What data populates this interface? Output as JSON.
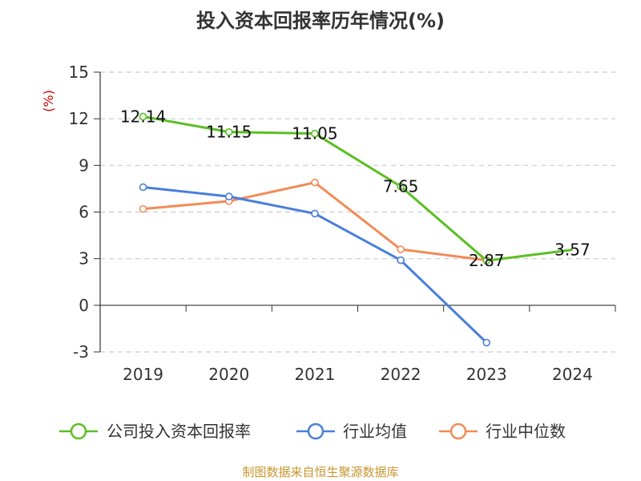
{
  "chart_data": {
    "type": "line",
    "title": "投入资本回报率历年情况(%)",
    "ylabel": "(%)",
    "categories": [
      "2019",
      "2020",
      "2021",
      "2022",
      "2023",
      "2024"
    ],
    "y_ticks": [
      "15",
      "12",
      "9",
      "6",
      "3",
      "0",
      "-3"
    ],
    "ylim": [
      -3,
      15
    ],
    "grid": true,
    "legend_position": "bottom",
    "series": [
      {
        "name": "公司投入资本回报率",
        "color": "#5bbf21",
        "values": [
          12.14,
          11.15,
          11.05,
          7.65,
          2.87,
          3.57
        ],
        "labels": [
          "12.14",
          "11.15",
          "11.05",
          "7.65",
          "2.87",
          "3.57"
        ]
      },
      {
        "name": "行业均值",
        "color": "#4a7fdc",
        "values": [
          7.6,
          7.0,
          5.9,
          2.9,
          -2.4,
          null
        ]
      },
      {
        "name": "行业中位数",
        "color": "#f28b57",
        "values": [
          6.2,
          6.7,
          7.9,
          3.6,
          2.9,
          null
        ]
      }
    ]
  },
  "source": "制图数据来自恒生聚源数据库",
  "colors": {
    "title": "#333333",
    "ylabel": "#cc0000",
    "source": "#c8962e",
    "grid": "#cccccc",
    "axis": "#333333"
  }
}
